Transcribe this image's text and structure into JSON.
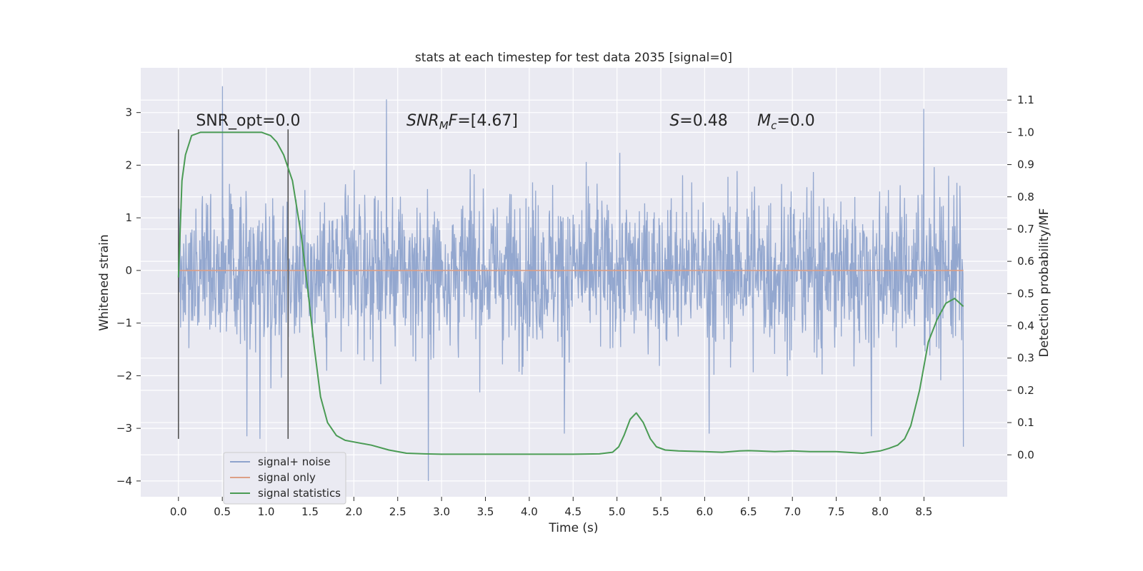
{
  "chart_data": {
    "type": "line",
    "title": "stats at each timestep for test data 2035 [signal=0]",
    "xlabel": "Time (s)",
    "ylabel": "Whitened strain",
    "y2label": "Detection probability/MF",
    "xlim": [
      -0.43,
      9.45
    ],
    "ylim": [
      -4.3,
      3.85
    ],
    "y2lim": [
      -0.13,
      1.2
    ],
    "xticks": [
      0.0,
      0.5,
      1.0,
      1.5,
      2.0,
      2.5,
      3.0,
      3.5,
      4.0,
      4.5,
      5.0,
      5.5,
      6.0,
      6.5,
      7.0,
      7.5,
      8.0,
      8.5
    ],
    "xtick_labels": [
      "0.0",
      "0.5",
      "1.0",
      "1.5",
      "2.0",
      "2.5",
      "3.0",
      "3.5",
      "4.0",
      "4.5",
      "5.0",
      "5.5",
      "6.0",
      "6.5",
      "7.0",
      "7.5",
      "8.0",
      "8.5"
    ],
    "yticks": [
      3,
      2,
      1,
      0,
      -1,
      -2,
      -3,
      -4
    ],
    "ytick_labels": [
      "3",
      "2",
      "1",
      "0",
      "−1",
      "−2",
      "−3",
      "−4"
    ],
    "y2ticks": [
      0.0,
      0.1,
      0.2,
      0.3,
      0.4,
      0.5,
      0.6,
      0.7,
      0.8,
      0.9,
      1.0,
      1.1
    ],
    "y2tick_labels": [
      "0.0",
      "0.1",
      "0.2",
      "0.3",
      "0.4",
      "0.5",
      "0.6",
      "0.7",
      "0.8",
      "0.9",
      "1.0",
      "1.1"
    ],
    "grid": true,
    "legend_position": "lower-left",
    "vlines": [
      {
        "x": 0.0,
        "ymin": -3.2,
        "ymax": 2.68
      },
      {
        "x": 1.25,
        "ymin": -3.2,
        "ymax": 2.68
      }
    ],
    "annotations": [
      {
        "x": 0.2,
        "y": 2.75,
        "parts": [
          {
            "text": "SNR_opt=0.0",
            "style": "normal"
          }
        ]
      },
      {
        "x": 2.6,
        "y": 2.75,
        "parts": [
          {
            "text": "SNR",
            "style": "italic"
          },
          {
            "text": "M",
            "style": "italic-sub"
          },
          {
            "text": "F",
            "style": "italic"
          },
          {
            "text": "=[4.67]",
            "style": "normal"
          }
        ]
      },
      {
        "x": 5.6,
        "y": 2.75,
        "parts": [
          {
            "text": "S",
            "style": "italic"
          },
          {
            "text": "=0.48",
            "style": "normal"
          }
        ]
      },
      {
        "x": 6.6,
        "y": 2.75,
        "parts": [
          {
            "text": "M",
            "style": "italic"
          },
          {
            "text": "c",
            "style": "italic-sub"
          },
          {
            "text": "=0.0",
            "style": "normal"
          }
        ]
      }
    ],
    "series": [
      {
        "name": "signal+ noise",
        "color": "#8ea3cc",
        "axis": "left",
        "description_kind": "noise",
        "x_range": [
          0.0,
          8.95
        ],
        "peaks": [
          {
            "x": 0.5,
            "y": 3.5
          },
          {
            "x": 0.93,
            "y": 2.95
          },
          {
            "x": 2.37,
            "y": 3.25
          },
          {
            "x": 2.85,
            "y": -4.0
          },
          {
            "x": 8.5,
            "y": 3.07
          },
          {
            "x": 8.95,
            "y": -3.35
          },
          {
            "x": 0.78,
            "y": -3.15
          },
          {
            "x": 0.93,
            "y": -3.2
          },
          {
            "x": 4.4,
            "y": -3.1
          },
          {
            "x": 6.05,
            "y": -3.1
          },
          {
            "x": 7.9,
            "y": -3.15
          }
        ]
      },
      {
        "name": "signal only",
        "color": "#dd9f86",
        "axis": "left",
        "x": [
          0.0,
          8.95
        ],
        "y": [
          0.0,
          0.0
        ]
      },
      {
        "name": "signal statistics",
        "color": "#4a9b54",
        "axis": "right",
        "x": [
          0.0,
          0.04,
          0.08,
          0.15,
          0.25,
          0.4,
          0.6,
          0.8,
          0.95,
          1.05,
          1.12,
          1.2,
          1.3,
          1.4,
          1.48,
          1.55,
          1.62,
          1.7,
          1.8,
          1.9,
          2.0,
          2.2,
          2.4,
          2.6,
          2.8,
          3.0,
          3.5,
          4.0,
          4.5,
          4.8,
          4.95,
          5.02,
          5.08,
          5.15,
          5.22,
          5.3,
          5.38,
          5.45,
          5.55,
          5.7,
          6.0,
          6.2,
          6.4,
          6.5,
          6.6,
          6.8,
          7.0,
          7.2,
          7.5,
          7.8,
          8.0,
          8.1,
          8.2,
          8.28,
          8.35,
          8.45,
          8.55,
          8.65,
          8.75,
          8.85,
          8.95
        ],
        "y": [
          0.55,
          0.85,
          0.93,
          0.99,
          1.0,
          1.0,
          1.0,
          1.0,
          1.0,
          0.99,
          0.97,
          0.93,
          0.85,
          0.68,
          0.5,
          0.33,
          0.18,
          0.1,
          0.06,
          0.045,
          0.04,
          0.03,
          0.015,
          0.005,
          0.003,
          0.002,
          0.002,
          0.002,
          0.002,
          0.003,
          0.008,
          0.025,
          0.06,
          0.11,
          0.13,
          0.1,
          0.05,
          0.025,
          0.015,
          0.012,
          0.01,
          0.008,
          0.012,
          0.013,
          0.012,
          0.01,
          0.012,
          0.01,
          0.01,
          0.005,
          0.012,
          0.02,
          0.03,
          0.05,
          0.09,
          0.2,
          0.35,
          0.42,
          0.47,
          0.485,
          0.46
        ]
      }
    ]
  }
}
